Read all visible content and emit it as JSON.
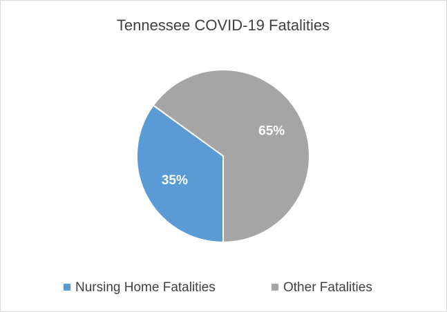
{
  "chart_data": {
    "type": "pie",
    "title": "Tennessee  COVID-19 Fatalities",
    "categories": [
      "Nursing Home Fatalities",
      "Other Fatalities"
    ],
    "values": [
      35,
      65
    ],
    "value_labels": [
      "35%",
      "65%"
    ],
    "colors": [
      "#5b9bd5",
      "#a5a5a5"
    ],
    "legend": "bottom"
  }
}
